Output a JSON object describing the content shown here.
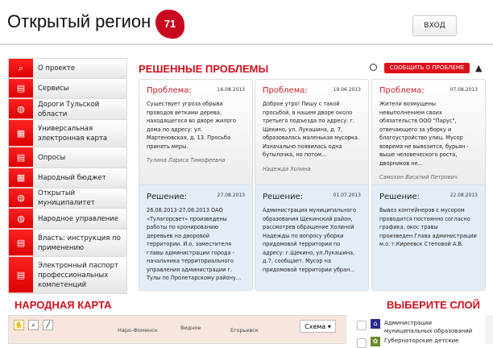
{
  "header": {
    "site_title": "Открытый регион",
    "region_badge": "71",
    "login_label": "ВХОД"
  },
  "sidebar": {
    "items": [
      {
        "label": "О проекте",
        "icon": "search-icon"
      },
      {
        "label": "Сервисы",
        "icon": "calendar-icon"
      },
      {
        "label": "Дороги Тульской области",
        "icon": "globe-icon"
      },
      {
        "label": "Универсальная электронная карта",
        "icon": "presentation-icon"
      },
      {
        "label": "Опросы",
        "icon": "calendar-icon"
      },
      {
        "label": "Народный бюджет",
        "icon": "calculator-icon"
      },
      {
        "label": "Открытый муниципалитет",
        "icon": "globe-icon"
      },
      {
        "label": "Народное управление",
        "icon": "globe-icon"
      },
      {
        "label": "Власть: инструкция по применению",
        "icon": "calendar-icon"
      },
      {
        "label": "Электронный паспорт профессиональных компетенций",
        "icon": "calendar-icon"
      }
    ]
  },
  "problems": {
    "title": "РЕШЕННЫЕ ПРОБЛЕМЫ",
    "report_label": "СООБЩИТЬ О ПРОБЛЕМЕ",
    "cards": [
      {
        "problem_label": "Проблема:",
        "problem_date": "16.08.2013",
        "problem_text": "Существует угроза обрыва проводов ветками дерева,  находящегося во дворе жилого дома  по адресу: ул. Мартеновская, д. 13. Просьба принять меры.",
        "author": "Тулина Лариса Тимофеевна",
        "solution_label": "Решение:",
        "solution_date": "27.08.2013",
        "solution_text": "26.08.2013-27.08.2013 ОАО «Тулагорсвет» произведены работы по кронированию деревьев на дворовой территории. И.о. заместителя главы администрации города - начальника территориального управления администрации г. Тулы по Пролетарскому району..."
      },
      {
        "problem_label": "Проблема:",
        "problem_date": "19.06.2013",
        "problem_text": "Доброе утро! Пишу с такой просьбой, в нашем дворе около третьего подъезда по адресу: г. Щекино, ул. Лукашина, д. 7, образовалась маленькая мусорка. Изначально появилась одна бутылочка, но потом...",
        "author": "Надежда Холина",
        "solution_label": "Решение:",
        "solution_date": "01.07.2013",
        "solution_text": "Администрация муниципального образования Щекинский район, рассмотрев обращение Холиной Надежды по вопросу уборки придомовой территории по адресу: г.Щекино, ул.Лукашина, д.7, сообщает. Мусор на придомовой территории убран..."
      },
      {
        "problem_label": "Проблема:",
        "problem_date": "07.08.2013",
        "problem_text": "Жители возмущены невыполнением своих обязательств ООО \"Парус\", отвечающего за уборку и благоустройство улиц. Мусор вовремя не вывозится, бурьян - выше человеческого роста, дворников не...",
        "author": "Самохин Василий Петрович",
        "solution_label": "Решение:",
        "solution_date": "22.08.2013",
        "solution_text": "Вывоз контейнеров с мусором проводится постоянно согласно графика, окос травы произведен.Глава администрации м.о. г.Киреевск Степовой А.В."
      }
    ]
  },
  "map": {
    "title": "НАРОДНАЯ КАРТА",
    "cities": [
      "Наро-Фоминск",
      "Видное",
      "Егорьевск"
    ],
    "scheme_label": "Схема ▾"
  },
  "layers": {
    "title": "ВЫБЕРИТЕ СЛОЙ",
    "items": [
      {
        "label": "Администрации муниципальных образований",
        "color": "#2a2a8a"
      },
      {
        "label": "Губернаторские детские",
        "color": "#6a8a2a"
      }
    ]
  }
}
